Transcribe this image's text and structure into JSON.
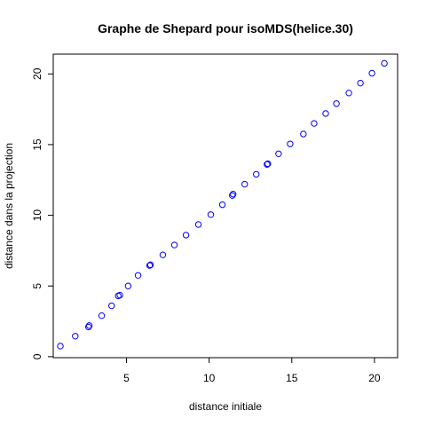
{
  "chart_data": {
    "type": "scatter",
    "title": "Graphe de Shepard pour isoMDS(helice.30)",
    "xlabel": "distance initiale",
    "ylabel": "distance dans la projection",
    "xlim": [
      0.57,
      21.4
    ],
    "ylim": [
      -0.07,
      21.4
    ],
    "xticks": [
      5,
      10,
      15,
      20
    ],
    "yticks": [
      0,
      5,
      10,
      15,
      20
    ],
    "grid": false,
    "point_color": "#0000ff",
    "points": [
      [
        1.0,
        0.75
      ],
      [
        1.9,
        1.45
      ],
      [
        2.7,
        2.1
      ],
      [
        2.75,
        2.2
      ],
      [
        3.5,
        2.9
      ],
      [
        4.1,
        3.6
      ],
      [
        4.5,
        4.3
      ],
      [
        4.6,
        4.35
      ],
      [
        5.1,
        5.0
      ],
      [
        5.7,
        5.75
      ],
      [
        6.4,
        6.45
      ],
      [
        6.45,
        6.5
      ],
      [
        7.2,
        7.2
      ],
      [
        7.9,
        7.9
      ],
      [
        8.6,
        8.6
      ],
      [
        9.35,
        9.35
      ],
      [
        10.1,
        10.05
      ],
      [
        10.8,
        10.75
      ],
      [
        11.4,
        11.4
      ],
      [
        11.45,
        11.5
      ],
      [
        12.15,
        12.2
      ],
      [
        12.85,
        12.9
      ],
      [
        13.5,
        13.6
      ],
      [
        13.55,
        13.65
      ],
      [
        14.2,
        14.35
      ],
      [
        14.9,
        15.05
      ],
      [
        15.7,
        15.75
      ],
      [
        16.35,
        16.5
      ],
      [
        17.05,
        17.2
      ],
      [
        17.7,
        17.9
      ],
      [
        18.45,
        18.65
      ],
      [
        19.15,
        19.35
      ],
      [
        19.85,
        20.05
      ],
      [
        20.6,
        20.75
      ]
    ]
  }
}
